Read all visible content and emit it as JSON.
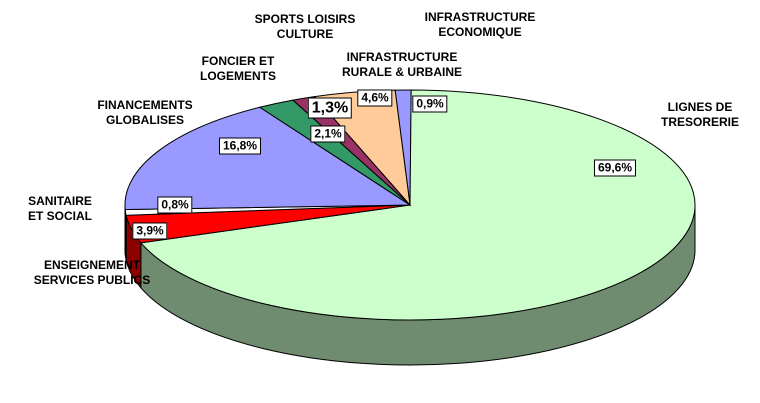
{
  "chart_data": {
    "type": "pie",
    "categories": [
      "INFRASTRUCTURE\nECONOMIQUE",
      "LIGNES DE\nTRESORERIE",
      "ENSEIGNEMENT\nSERVICES PUBLICS",
      "SANITAIRE\nET SOCIAL",
      "FINANCEMENTS\nGLOBALISES",
      "FONCIER ET\nLOGEMENTS",
      "SPORTS LOISIRS\nCULTURE",
      "INFRASTRUCTURE\nRURALE & URBAINE"
    ],
    "values": [
      0.9,
      69.6,
      3.9,
      0.8,
      16.8,
      2.1,
      1.3,
      4.6
    ],
    "value_labels": [
      "0,9%",
      "69,6%",
      "3,9%",
      "0,8%",
      "16,8%",
      "2,1%",
      "1,3%",
      "4,6%"
    ],
    "colors": [
      "#9999ff",
      "#ccffcc",
      "#ff0000",
      "#ffffff",
      "#9999ff",
      "#339966",
      "#993366",
      "#ffcc99"
    ]
  }
}
